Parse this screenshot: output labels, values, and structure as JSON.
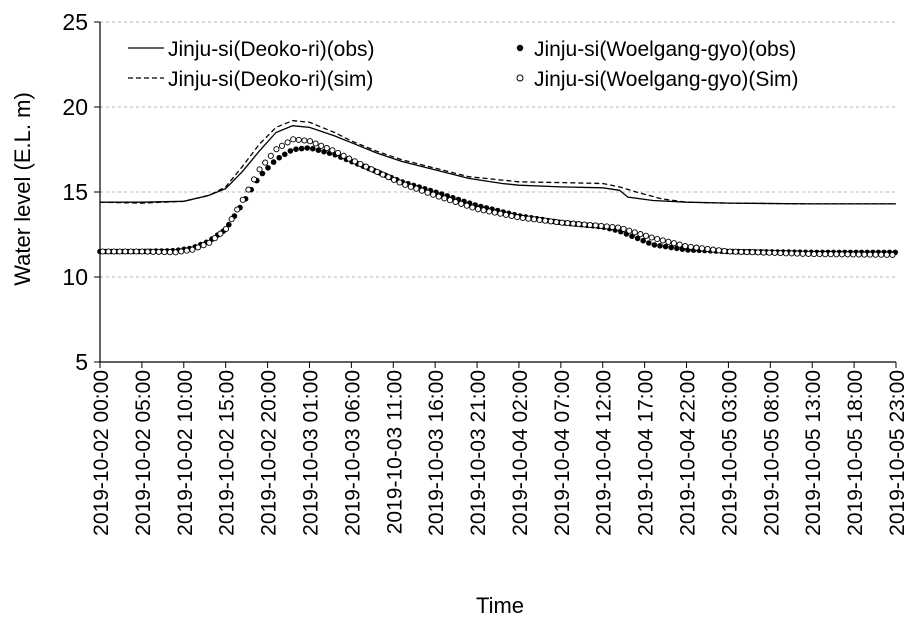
{
  "chart_data": {
    "type": "line",
    "title": "",
    "xlabel": "Time",
    "ylabel": "Water level (E.L. m)",
    "ylim": [
      5,
      25
    ],
    "yticks": [
      5,
      10,
      15,
      20,
      25
    ],
    "xlim": [
      "2019-10-02 00:00",
      "2019-10-05 23:00"
    ],
    "xtick_labels": [
      "2019-10-02 00:00",
      "2019-10-02 05:00",
      "2019-10-02 10:00",
      "2019-10-02 15:00",
      "2019-10-02 20:00",
      "2019-10-03 01:00",
      "2019-10-03 06:00",
      "2019-10-03 11:00",
      "2019-10-03 16:00",
      "2019-10-03 21:00",
      "2019-10-04 02:00",
      "2019-10-04 07:00",
      "2019-10-04 12:00",
      "2019-10-04 17:00",
      "2019-10-04 22:00",
      "2019-10-05 03:00",
      "2019-10-05 08:00",
      "2019-10-05 13:00",
      "2019-10-05 18:00",
      "2019-10-05 23:00"
    ],
    "grid": "horizontal-dashed",
    "legend_position": "top",
    "series": [
      {
        "name": "Jinju-si(Deoko-ri)(obs)",
        "style": "solid-line",
        "color": "#000000",
        "points": [
          [
            "2019-10-02 00:00",
            14.4
          ],
          [
            "2019-10-02 05:00",
            14.4
          ],
          [
            "2019-10-02 10:00",
            14.45
          ],
          [
            "2019-10-02 13:00",
            14.8
          ],
          [
            "2019-10-02 15:00",
            15.2
          ],
          [
            "2019-10-02 17:00",
            16.2
          ],
          [
            "2019-10-02 19:00",
            17.4
          ],
          [
            "2019-10-02 21:00",
            18.5
          ],
          [
            "2019-10-02 23:00",
            18.9
          ],
          [
            "2019-10-03 01:00",
            18.8
          ],
          [
            "2019-10-03 04:00",
            18.3
          ],
          [
            "2019-10-03 06:00",
            17.9
          ],
          [
            "2019-10-03 09:00",
            17.3
          ],
          [
            "2019-10-03 12:00",
            16.8
          ],
          [
            "2019-10-03 16:00",
            16.3
          ],
          [
            "2019-10-03 20:00",
            15.8
          ],
          [
            "2019-10-04 00:00",
            15.5
          ],
          [
            "2019-10-04 02:00",
            15.4
          ],
          [
            "2019-10-04 07:00",
            15.3
          ],
          [
            "2019-10-04 12:00",
            15.25
          ],
          [
            "2019-10-04 14:00",
            15.1
          ],
          [
            "2019-10-04 15:00",
            14.7
          ],
          [
            "2019-10-04 18:00",
            14.5
          ],
          [
            "2019-10-04 22:00",
            14.4
          ],
          [
            "2019-10-05 03:00",
            14.35
          ],
          [
            "2019-10-05 13:00",
            14.3
          ],
          [
            "2019-10-05 23:00",
            14.3
          ]
        ]
      },
      {
        "name": "Jinju-si(Deoko-ri)(sim)",
        "style": "dashed-line",
        "color": "#000000",
        "points": [
          [
            "2019-10-02 00:00",
            14.4
          ],
          [
            "2019-10-02 05:00",
            14.35
          ],
          [
            "2019-10-02 10:00",
            14.45
          ],
          [
            "2019-10-02 13:00",
            14.8
          ],
          [
            "2019-10-02 15:00",
            15.3
          ],
          [
            "2019-10-02 17:00",
            16.5
          ],
          [
            "2019-10-02 19:00",
            17.8
          ],
          [
            "2019-10-02 21:00",
            18.8
          ],
          [
            "2019-10-02 23:00",
            19.2
          ],
          [
            "2019-10-03 01:00",
            19.1
          ],
          [
            "2019-10-03 04:00",
            18.5
          ],
          [
            "2019-10-03 06:00",
            18.0
          ],
          [
            "2019-10-03 09:00",
            17.4
          ],
          [
            "2019-10-03 12:00",
            16.9
          ],
          [
            "2019-10-03 16:00",
            16.4
          ],
          [
            "2019-10-03 20:00",
            15.9
          ],
          [
            "2019-10-04 00:00",
            15.7
          ],
          [
            "2019-10-04 02:00",
            15.6
          ],
          [
            "2019-10-04 07:00",
            15.55
          ],
          [
            "2019-10-04 12:00",
            15.5
          ],
          [
            "2019-10-04 14:00",
            15.3
          ],
          [
            "2019-10-04 16:00",
            15.0
          ],
          [
            "2019-10-04 19:00",
            14.6
          ],
          [
            "2019-10-04 22:00",
            14.4
          ],
          [
            "2019-10-05 03:00",
            14.35
          ],
          [
            "2019-10-05 13:00",
            14.3
          ],
          [
            "2019-10-05 23:00",
            14.3
          ]
        ]
      },
      {
        "name": "Jinju-si(Woelgang-gyo)(obs)",
        "style": "filled-markers",
        "color": "#000000",
        "points": [
          [
            "2019-10-02 00:00",
            11.5
          ],
          [
            "2019-10-02 05:00",
            11.5
          ],
          [
            "2019-10-02 09:00",
            11.55
          ],
          [
            "2019-10-02 11:00",
            11.7
          ],
          [
            "2019-10-02 13:00",
            12.1
          ],
          [
            "2019-10-02 15:00",
            12.8
          ],
          [
            "2019-10-02 17:00",
            14.3
          ],
          [
            "2019-10-02 19:00",
            15.9
          ],
          [
            "2019-10-02 21:00",
            16.9
          ],
          [
            "2019-10-02 23:00",
            17.5
          ],
          [
            "2019-10-03 01:00",
            17.6
          ],
          [
            "2019-10-03 04:00",
            17.2
          ],
          [
            "2019-10-03 06:00",
            16.8
          ],
          [
            "2019-10-03 09:00",
            16.2
          ],
          [
            "2019-10-03 12:00",
            15.6
          ],
          [
            "2019-10-03 16:00",
            15.0
          ],
          [
            "2019-10-03 21:00",
            14.2
          ],
          [
            "2019-10-04 02:00",
            13.6
          ],
          [
            "2019-10-04 07:00",
            13.2
          ],
          [
            "2019-10-04 12:00",
            12.95
          ],
          [
            "2019-10-04 14:00",
            12.7
          ],
          [
            "2019-10-04 16:00",
            12.3
          ],
          [
            "2019-10-04 18:00",
            11.9
          ],
          [
            "2019-10-04 22:00",
            11.6
          ],
          [
            "2019-10-05 03:00",
            11.5
          ],
          [
            "2019-10-05 13:00",
            11.45
          ],
          [
            "2019-10-05 23:00",
            11.45
          ]
        ]
      },
      {
        "name": "Jinju-si(Woelgang-gyo)(Sim)",
        "style": "open-markers",
        "color": "#000000",
        "points": [
          [
            "2019-10-02 00:00",
            11.5
          ],
          [
            "2019-10-02 05:00",
            11.5
          ],
          [
            "2019-10-02 09:00",
            11.45
          ],
          [
            "2019-10-02 11:00",
            11.6
          ],
          [
            "2019-10-02 13:00",
            12.0
          ],
          [
            "2019-10-02 15:00",
            12.8
          ],
          [
            "2019-10-02 17:00",
            14.5
          ],
          [
            "2019-10-02 19:00",
            16.3
          ],
          [
            "2019-10-02 21:00",
            17.5
          ],
          [
            "2019-10-02 23:00",
            18.1
          ],
          [
            "2019-10-03 01:00",
            18.0
          ],
          [
            "2019-10-03 04:00",
            17.4
          ],
          [
            "2019-10-03 06:00",
            16.9
          ],
          [
            "2019-10-03 09:00",
            16.2
          ],
          [
            "2019-10-03 12:00",
            15.5
          ],
          [
            "2019-10-03 16:00",
            14.8
          ],
          [
            "2019-10-03 21:00",
            14.0
          ],
          [
            "2019-10-04 02:00",
            13.5
          ],
          [
            "2019-10-04 07:00",
            13.2
          ],
          [
            "2019-10-04 12:00",
            13.0
          ],
          [
            "2019-10-04 14:00",
            12.9
          ],
          [
            "2019-10-04 16:00",
            12.6
          ],
          [
            "2019-10-04 18:00",
            12.3
          ],
          [
            "2019-10-04 22:00",
            11.8
          ],
          [
            "2019-10-05 03:00",
            11.5
          ],
          [
            "2019-10-05 13:00",
            11.35
          ],
          [
            "2019-10-05 23:00",
            11.3
          ]
        ]
      }
    ]
  }
}
